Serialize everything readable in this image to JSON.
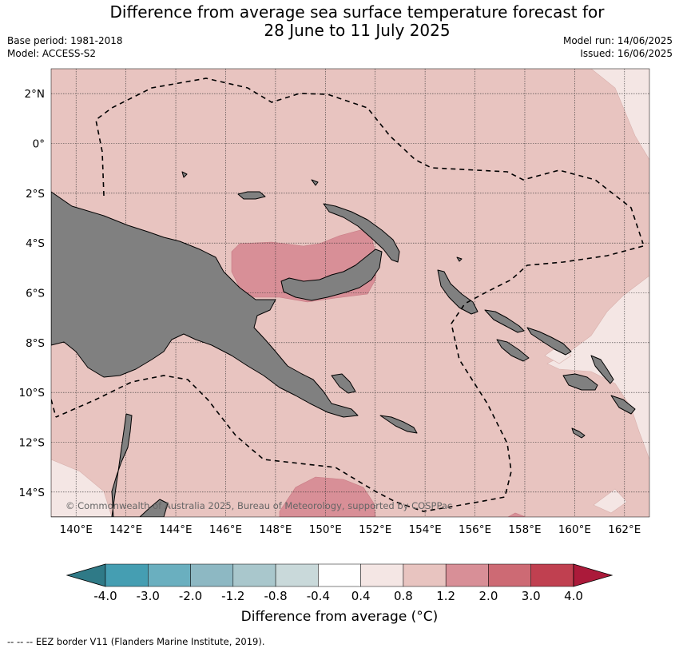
{
  "title": {
    "line1": "Difference from average sea surface temperature forecast for",
    "line2": "28 June to 11 July 2025"
  },
  "meta": {
    "base_period": "Base period: 1981-2018",
    "model": "Model: ACCESS-S2",
    "model_run": "Model run: 14/06/2025",
    "issued": "Issued: 16/06/2025"
  },
  "map": {
    "lon_range": [
      139,
      163
    ],
    "lat_range": [
      -15,
      3
    ],
    "lon_ticks": [
      140,
      142,
      144,
      146,
      148,
      150,
      152,
      154,
      156,
      158,
      160,
      162
    ],
    "lon_tick_labels": [
      "140°E",
      "142°E",
      "144°E",
      "146°E",
      "148°E",
      "150°E",
      "152°E",
      "154°E",
      "156°E",
      "158°E",
      "160°E",
      "162°E"
    ],
    "lat_ticks": [
      2,
      0,
      -2,
      -4,
      -6,
      -8,
      -10,
      -12,
      -14
    ],
    "lat_tick_labels": [
      "2°N",
      "0°",
      "2°S",
      "4°S",
      "6°S",
      "8°S",
      "10°S",
      "12°S",
      "14°S"
    ],
    "copyright": "© Commonwealth of Australia 2025, Bureau of Meteorology, supported by COSPPac",
    "colors": {
      "land": "#808080",
      "ocean_base": "#e8c4c0",
      "anom_0_4": "#f4e6e4",
      "anom_1_2": "#d88f97"
    }
  },
  "colorbar": {
    "title": "Difference from average (°C)",
    "labels": [
      "-4.0",
      "-3.0",
      "-2.0",
      "-1.2",
      "-0.8",
      "-0.4",
      "0.4",
      "0.8",
      "1.2",
      "2.0",
      "3.0",
      "4.0"
    ],
    "colors": [
      "#2f7a87",
      "#459eb2",
      "#6aafbf",
      "#8db8c3",
      "#a9c7cc",
      "#c9d9da",
      "#ffffff",
      "#f4e6e4",
      "#e8c4c0",
      "#d88f97",
      "#cd6a74",
      "#c04050",
      "#ab1a3a"
    ]
  },
  "footnote": "-- -- -- EEZ border V11 (Flanders Marine Institute, 2019)."
}
